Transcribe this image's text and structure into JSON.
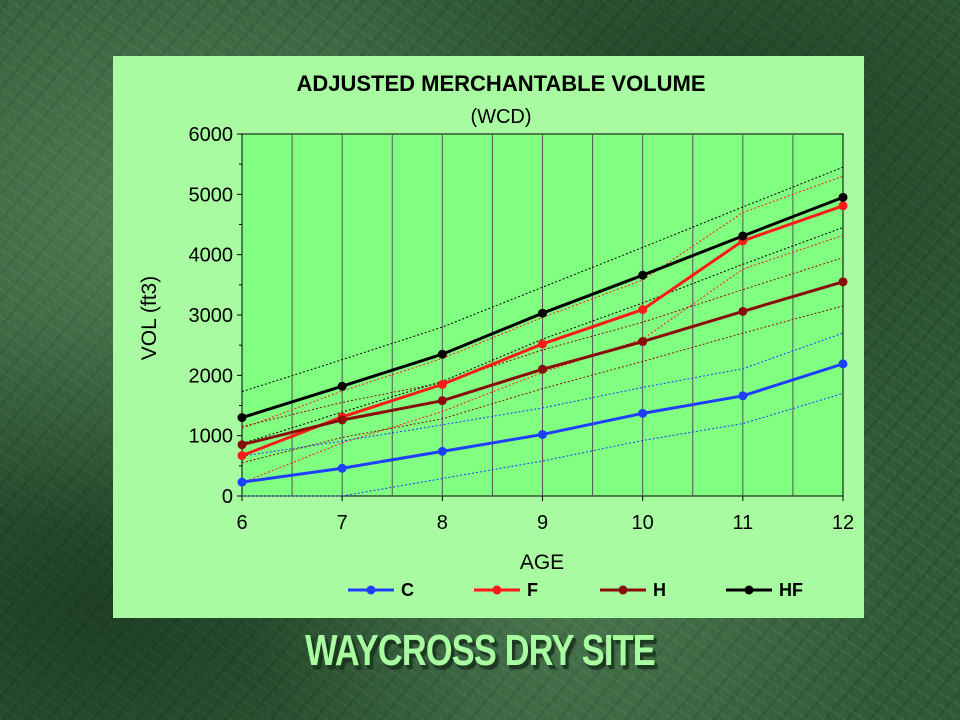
{
  "colors": {
    "background": "#2f5a36",
    "panel": "#a8fba0",
    "plot_area": "#80ff80",
    "C": "#1f3fff",
    "F": "#ff1a1a",
    "H": "#8a0d0d",
    "HF": "#000000"
  },
  "site_title": "WAYCROSS DRY SITE",
  "chart_data": {
    "type": "line",
    "title": "ADJUSTED MERCHANTABLE VOLUME",
    "subtitle": "(WCD)",
    "xlabel": "AGE",
    "ylabel": "VOL (ft3)",
    "x": [
      6,
      7,
      8,
      9,
      10,
      11,
      12
    ],
    "xlim": [
      6,
      12
    ],
    "ylim": [
      0,
      6000
    ],
    "x_ticks": [
      "6",
      "7",
      "8",
      "9",
      "10",
      "11",
      "12"
    ],
    "y_ticks": [
      "0",
      "1000",
      "2000",
      "3000",
      "4000",
      "5000",
      "6000"
    ],
    "grid": "vertical",
    "legend_position": "bottom",
    "series": [
      {
        "name": "C",
        "color": "#1f3fff",
        "values": [
          230,
          460,
          740,
          1020,
          1370,
          1660,
          2190
        ]
      },
      {
        "name": "F",
        "color": "#ff1a1a",
        "values": [
          670,
          1310,
          1850,
          2520,
          3090,
          4230,
          4810
        ]
      },
      {
        "name": "H",
        "color": "#8a0d0d",
        "values": [
          850,
          1260,
          1580,
          2100,
          2560,
          3060,
          3550
        ]
      },
      {
        "name": "HF",
        "color": "#000000",
        "values": [
          1300,
          1820,
          2350,
          3030,
          3660,
          4310,
          4950
        ]
      }
    ],
    "confidence_bands": [
      {
        "series": "C",
        "color": "#1f3fff",
        "upper": [
          660,
          910,
          1180,
          1460,
          1800,
          2110,
          2700
        ],
        "lower": [
          -200,
          0,
          290,
          580,
          920,
          1200,
          1700
        ]
      },
      {
        "series": "F",
        "color": "#ff1a1a",
        "upper": [
          1120,
          1740,
          2280,
          2960,
          3580,
          4700,
          5300
        ],
        "lower": [
          220,
          880,
          1400,
          2050,
          2600,
          3760,
          4320
        ]
      },
      {
        "series": "H",
        "color": "#8a0d0d",
        "upper": [
          1150,
          1550,
          1880,
          2420,
          2880,
          3420,
          3950
        ],
        "lower": [
          550,
          970,
          1280,
          1780,
          2230,
          2700,
          3150
        ]
      },
      {
        "series": "HF",
        "color": "#000000",
        "upper": [
          1730,
          2260,
          2800,
          3460,
          4120,
          4790,
          5450
        ],
        "lower": [
          870,
          1390,
          1900,
          2600,
          3200,
          3840,
          4450
        ]
      }
    ]
  }
}
